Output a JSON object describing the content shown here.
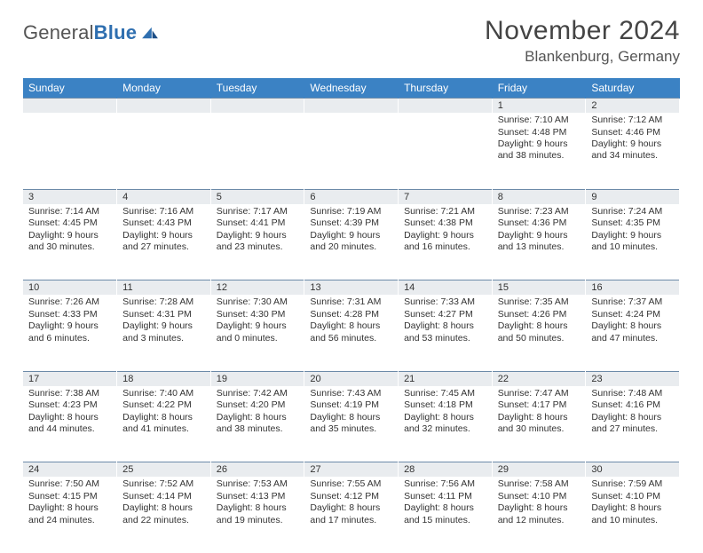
{
  "logo": {
    "text1": "General",
    "text2": "Blue"
  },
  "title": {
    "month": "November 2024",
    "location": "Blankenburg, Germany"
  },
  "weekdays": [
    "Sunday",
    "Monday",
    "Tuesday",
    "Wednesday",
    "Thursday",
    "Friday",
    "Saturday"
  ],
  "colors": {
    "header_bg": "#3b82c4",
    "daynum_bg": "#e9ecef",
    "rule": "#6c8aa8",
    "text": "#333333",
    "logo_blue": "#2f6fb0"
  },
  "weeks": [
    [
      null,
      null,
      null,
      null,
      null,
      {
        "n": "1",
        "sr": "Sunrise: 7:10 AM",
        "ss": "Sunset: 4:48 PM",
        "d1": "Daylight: 9 hours",
        "d2": "and 38 minutes."
      },
      {
        "n": "2",
        "sr": "Sunrise: 7:12 AM",
        "ss": "Sunset: 4:46 PM",
        "d1": "Daylight: 9 hours",
        "d2": "and 34 minutes."
      }
    ],
    [
      {
        "n": "3",
        "sr": "Sunrise: 7:14 AM",
        "ss": "Sunset: 4:45 PM",
        "d1": "Daylight: 9 hours",
        "d2": "and 30 minutes."
      },
      {
        "n": "4",
        "sr": "Sunrise: 7:16 AM",
        "ss": "Sunset: 4:43 PM",
        "d1": "Daylight: 9 hours",
        "d2": "and 27 minutes."
      },
      {
        "n": "5",
        "sr": "Sunrise: 7:17 AM",
        "ss": "Sunset: 4:41 PM",
        "d1": "Daylight: 9 hours",
        "d2": "and 23 minutes."
      },
      {
        "n": "6",
        "sr": "Sunrise: 7:19 AM",
        "ss": "Sunset: 4:39 PM",
        "d1": "Daylight: 9 hours",
        "d2": "and 20 minutes."
      },
      {
        "n": "7",
        "sr": "Sunrise: 7:21 AM",
        "ss": "Sunset: 4:38 PM",
        "d1": "Daylight: 9 hours",
        "d2": "and 16 minutes."
      },
      {
        "n": "8",
        "sr": "Sunrise: 7:23 AM",
        "ss": "Sunset: 4:36 PM",
        "d1": "Daylight: 9 hours",
        "d2": "and 13 minutes."
      },
      {
        "n": "9",
        "sr": "Sunrise: 7:24 AM",
        "ss": "Sunset: 4:35 PM",
        "d1": "Daylight: 9 hours",
        "d2": "and 10 minutes."
      }
    ],
    [
      {
        "n": "10",
        "sr": "Sunrise: 7:26 AM",
        "ss": "Sunset: 4:33 PM",
        "d1": "Daylight: 9 hours",
        "d2": "and 6 minutes."
      },
      {
        "n": "11",
        "sr": "Sunrise: 7:28 AM",
        "ss": "Sunset: 4:31 PM",
        "d1": "Daylight: 9 hours",
        "d2": "and 3 minutes."
      },
      {
        "n": "12",
        "sr": "Sunrise: 7:30 AM",
        "ss": "Sunset: 4:30 PM",
        "d1": "Daylight: 9 hours",
        "d2": "and 0 minutes."
      },
      {
        "n": "13",
        "sr": "Sunrise: 7:31 AM",
        "ss": "Sunset: 4:28 PM",
        "d1": "Daylight: 8 hours",
        "d2": "and 56 minutes."
      },
      {
        "n": "14",
        "sr": "Sunrise: 7:33 AM",
        "ss": "Sunset: 4:27 PM",
        "d1": "Daylight: 8 hours",
        "d2": "and 53 minutes."
      },
      {
        "n": "15",
        "sr": "Sunrise: 7:35 AM",
        "ss": "Sunset: 4:26 PM",
        "d1": "Daylight: 8 hours",
        "d2": "and 50 minutes."
      },
      {
        "n": "16",
        "sr": "Sunrise: 7:37 AM",
        "ss": "Sunset: 4:24 PM",
        "d1": "Daylight: 8 hours",
        "d2": "and 47 minutes."
      }
    ],
    [
      {
        "n": "17",
        "sr": "Sunrise: 7:38 AM",
        "ss": "Sunset: 4:23 PM",
        "d1": "Daylight: 8 hours",
        "d2": "and 44 minutes."
      },
      {
        "n": "18",
        "sr": "Sunrise: 7:40 AM",
        "ss": "Sunset: 4:22 PM",
        "d1": "Daylight: 8 hours",
        "d2": "and 41 minutes."
      },
      {
        "n": "19",
        "sr": "Sunrise: 7:42 AM",
        "ss": "Sunset: 4:20 PM",
        "d1": "Daylight: 8 hours",
        "d2": "and 38 minutes."
      },
      {
        "n": "20",
        "sr": "Sunrise: 7:43 AM",
        "ss": "Sunset: 4:19 PM",
        "d1": "Daylight: 8 hours",
        "d2": "and 35 minutes."
      },
      {
        "n": "21",
        "sr": "Sunrise: 7:45 AM",
        "ss": "Sunset: 4:18 PM",
        "d1": "Daylight: 8 hours",
        "d2": "and 32 minutes."
      },
      {
        "n": "22",
        "sr": "Sunrise: 7:47 AM",
        "ss": "Sunset: 4:17 PM",
        "d1": "Daylight: 8 hours",
        "d2": "and 30 minutes."
      },
      {
        "n": "23",
        "sr": "Sunrise: 7:48 AM",
        "ss": "Sunset: 4:16 PM",
        "d1": "Daylight: 8 hours",
        "d2": "and 27 minutes."
      }
    ],
    [
      {
        "n": "24",
        "sr": "Sunrise: 7:50 AM",
        "ss": "Sunset: 4:15 PM",
        "d1": "Daylight: 8 hours",
        "d2": "and 24 minutes."
      },
      {
        "n": "25",
        "sr": "Sunrise: 7:52 AM",
        "ss": "Sunset: 4:14 PM",
        "d1": "Daylight: 8 hours",
        "d2": "and 22 minutes."
      },
      {
        "n": "26",
        "sr": "Sunrise: 7:53 AM",
        "ss": "Sunset: 4:13 PM",
        "d1": "Daylight: 8 hours",
        "d2": "and 19 minutes."
      },
      {
        "n": "27",
        "sr": "Sunrise: 7:55 AM",
        "ss": "Sunset: 4:12 PM",
        "d1": "Daylight: 8 hours",
        "d2": "and 17 minutes."
      },
      {
        "n": "28",
        "sr": "Sunrise: 7:56 AM",
        "ss": "Sunset: 4:11 PM",
        "d1": "Daylight: 8 hours",
        "d2": "and 15 minutes."
      },
      {
        "n": "29",
        "sr": "Sunrise: 7:58 AM",
        "ss": "Sunset: 4:10 PM",
        "d1": "Daylight: 8 hours",
        "d2": "and 12 minutes."
      },
      {
        "n": "30",
        "sr": "Sunrise: 7:59 AM",
        "ss": "Sunset: 4:10 PM",
        "d1": "Daylight: 8 hours",
        "d2": "and 10 minutes."
      }
    ]
  ]
}
